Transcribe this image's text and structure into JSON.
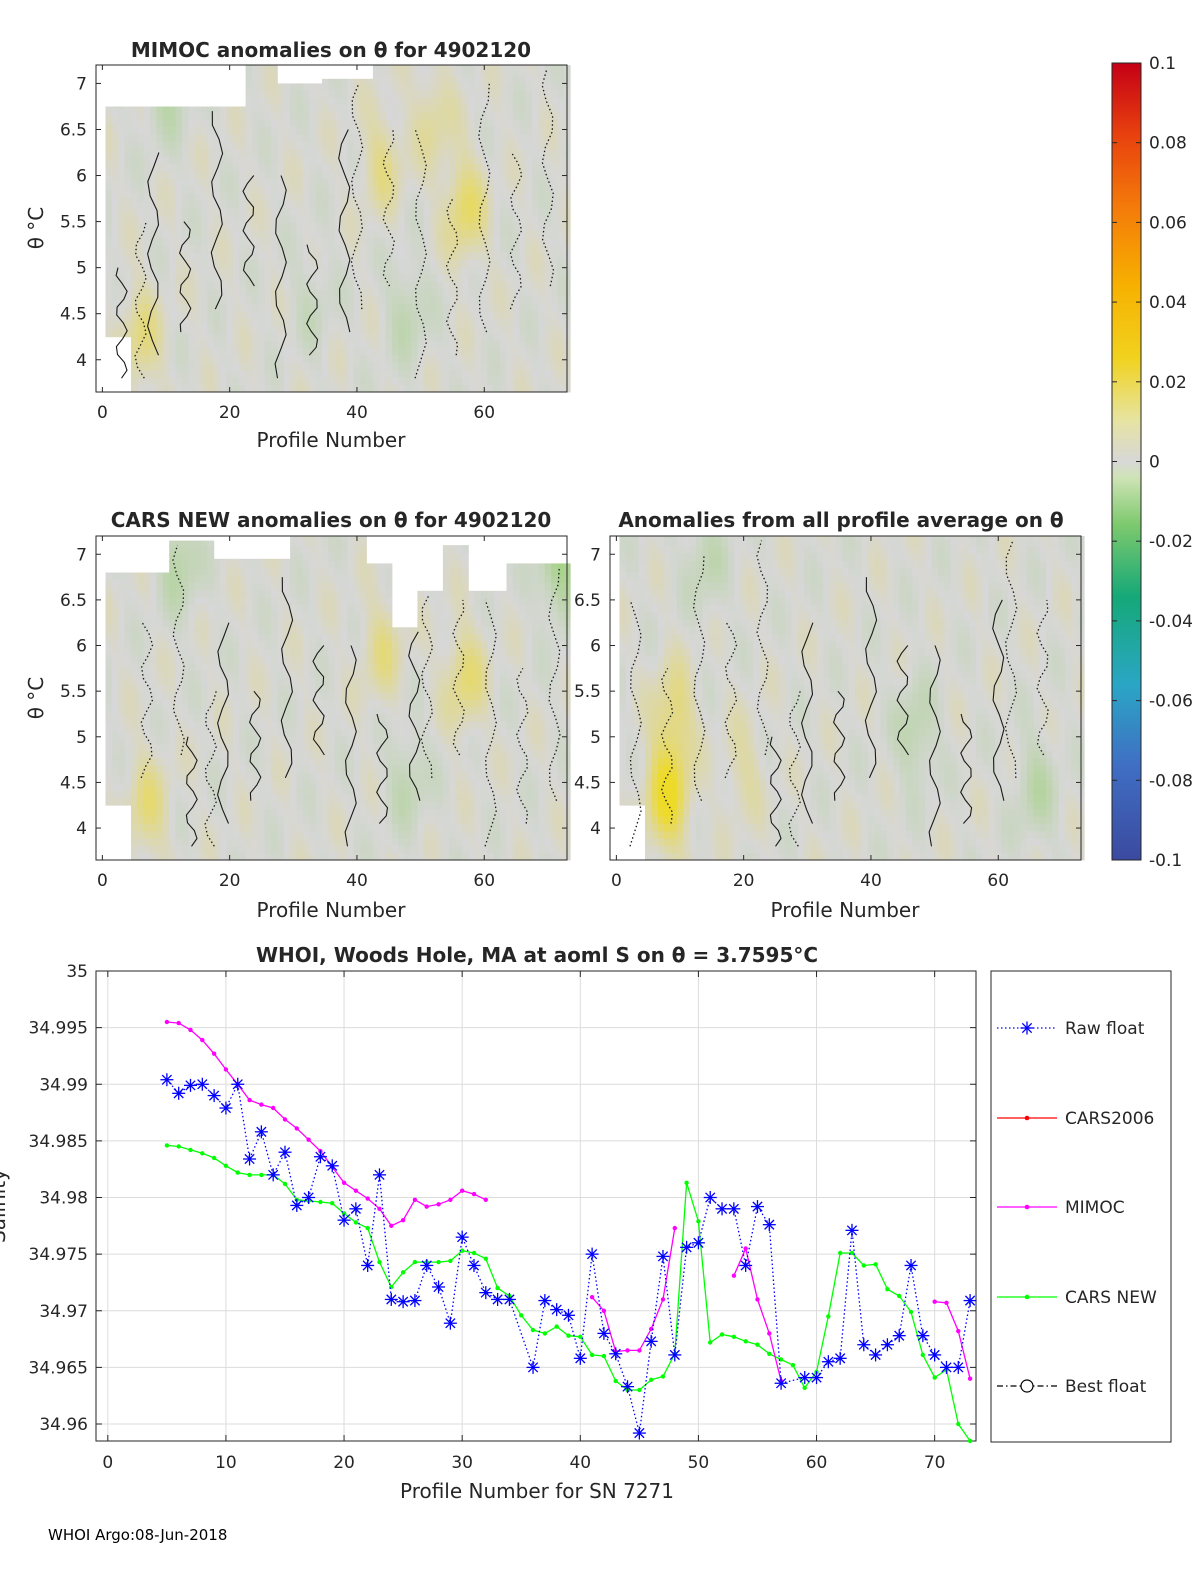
{
  "footer": "WHOI Argo:08-Jun-2018",
  "colorbar": {
    "ticks": [
      "0.1",
      "0.08",
      "0.06",
      "0.04",
      "0.02",
      "0",
      "-0.02",
      "-0.04",
      "-0.06",
      "-0.08",
      "-0.1"
    ]
  },
  "chart_data": [
    {
      "type": "heatmap",
      "title": "MIMOC anomalies on θ  for 4902120",
      "xlabel": "Profile Number",
      "ylabel": "θ °C",
      "xlim": [
        -1,
        73
      ],
      "ylim": [
        3.65,
        7.2
      ],
      "xticks": [
        "0",
        "20",
        "40",
        "60"
      ],
      "yticks": [
        "7",
        "6.5",
        "6",
        "5.5",
        "5",
        "4.5",
        "4"
      ],
      "hotspots": [
        [
          57,
          5.6,
          0.018
        ],
        [
          44,
          6.1,
          0.012
        ],
        [
          6,
          4.2,
          0.014
        ],
        [
          52,
          6.6,
          0.01
        ]
      ],
      "coldspots": [
        [
          10,
          6.9,
          -0.012
        ],
        [
          48,
          4.5,
          -0.01
        ],
        [
          33,
          4.6,
          -0.006
        ]
      ]
    },
    {
      "type": "heatmap",
      "title": "CARS NEW anomalies on θ for 4902120",
      "xlabel": "Profile Number",
      "ylabel": "θ °C",
      "xlim": [
        -1,
        73
      ],
      "ylim": [
        3.65,
        7.2
      ],
      "xticks": [
        "0",
        "20",
        "40",
        "60"
      ],
      "yticks": [
        "7",
        "6.5",
        "6",
        "5.5",
        "5",
        "4.5",
        "4"
      ],
      "hotspots": [
        [
          57,
          5.6,
          0.016
        ],
        [
          44,
          5.9,
          0.012
        ],
        [
          7,
          4.2,
          0.014
        ]
      ],
      "coldspots": [
        [
          12,
          6.9,
          -0.014
        ],
        [
          72,
          6.8,
          -0.02
        ],
        [
          48,
          4.5,
          -0.01
        ]
      ]
    },
    {
      "type": "heatmap",
      "title": "Anomalies from all profile average on θ",
      "xlabel": "Profile Number",
      "ylabel": "",
      "xlim": [
        -1,
        73
      ],
      "ylim": [
        3.65,
        7.2
      ],
      "xticks": [
        "0",
        "20",
        "40",
        "60"
      ],
      "yticks": [
        "7",
        "6.5",
        "6",
        "5.5",
        "5",
        "4.5",
        "4"
      ],
      "hotspots": [
        [
          8,
          4.3,
          0.03
        ],
        [
          9,
          5.2,
          0.016
        ],
        [
          20,
          4.6,
          0.008
        ]
      ],
      "coldspots": [
        [
          47,
          5.0,
          -0.012
        ],
        [
          66,
          4.4,
          -0.012
        ],
        [
          14,
          6.9,
          -0.01
        ]
      ]
    },
    {
      "type": "line",
      "title": "WHOI, Woods Hole, MA at aoml S on θ = 3.7595°C",
      "xlabel": "Profile Number for SN 7271",
      "ylabel": "Salinity",
      "xlim": [
        -1,
        73.5
      ],
      "ylim": [
        34.9585,
        35.0
      ],
      "xticks": [
        "0",
        "10",
        "20",
        "30",
        "40",
        "50",
        "60",
        "70"
      ],
      "yticks": [
        "35",
        "34.995",
        "34.99",
        "34.985",
        "34.98",
        "34.975",
        "34.97",
        "34.965",
        "34.96"
      ],
      "series": [
        {
          "name": "Raw float",
          "color": "#0000ff",
          "x": [
            5,
            6,
            7,
            8,
            9,
            10,
            11,
            12,
            13,
            14,
            15,
            16,
            17,
            18,
            19,
            20,
            21,
            22,
            23,
            24,
            25,
            26,
            27,
            28,
            29,
            30,
            31,
            32,
            33,
            34,
            36,
            37,
            38,
            39,
            40,
            41,
            42,
            43,
            44,
            45,
            46,
            47,
            48,
            49,
            50,
            51,
            52,
            53,
            54,
            55,
            56,
            57,
            59,
            60,
            61,
            62,
            63,
            64,
            65,
            66,
            67,
            68,
            69,
            70,
            71,
            72,
            73
          ],
          "y": [
            34.9904,
            34.9892,
            34.9899,
            34.99,
            34.989,
            34.9879,
            34.99,
            34.9834,
            34.9858,
            34.982,
            34.984,
            34.9793,
            34.98,
            34.9836,
            34.9828,
            34.978,
            34.979,
            34.974,
            34.982,
            34.971,
            34.9708,
            34.9709,
            34.974,
            34.9721,
            34.9689,
            34.9765,
            34.974,
            34.9716,
            34.971,
            34.971,
            34.965,
            34.9709,
            34.9701,
            34.9696,
            34.9658,
            34.975,
            34.968,
            34.9662,
            34.9633,
            34.9592,
            34.9673,
            34.9748,
            34.9661,
            34.9756,
            34.976,
            34.98,
            34.979,
            34.979,
            34.974,
            34.9792,
            34.9776,
            34.9636,
            34.9641,
            34.9641,
            34.9655,
            34.9658,
            34.9771,
            34.967,
            34.9661,
            34.967,
            34.9678,
            34.974,
            34.9678,
            34.9661,
            34.965,
            34.965,
            34.9709
          ]
        },
        {
          "name": "CARS2006",
          "color": "#ff0000",
          "x": [],
          "y": []
        },
        {
          "name": "MIMOC",
          "color": "#ff00ff",
          "segments": [
            {
              "x": [
                5,
                6,
                7,
                8,
                9,
                10,
                11,
                12,
                13,
                14,
                15,
                16,
                17,
                18,
                19,
                20,
                21,
                22,
                23,
                24,
                25,
                26,
                27,
                28,
                29,
                30,
                31,
                32
              ],
              "y": [
                34.9955,
                34.9954,
                34.9948,
                34.9939,
                34.9927,
                34.9913,
                34.99,
                34.9886,
                34.9882,
                34.9879,
                34.9869,
                34.9861,
                34.9851,
                34.9841,
                34.9827,
                34.9813,
                34.9806,
                34.9799,
                34.979,
                34.9775,
                34.978,
                34.9798,
                34.9792,
                34.9794,
                34.9798,
                34.9806,
                34.9803,
                34.9798
              ]
            },
            {
              "x": [
                41,
                42,
                43,
                44,
                45,
                46,
                47,
                48
              ],
              "y": [
                34.9712,
                34.97,
                34.9664,
                34.9665,
                34.9665,
                34.9684,
                34.971,
                34.9773
              ]
            },
            {
              "x": [
                53,
                54,
                55,
                56,
                57
              ],
              "y": [
                34.9731,
                34.9755,
                34.971,
                34.968,
                34.9638
              ]
            },
            {
              "x": [
                70,
                71,
                72,
                73
              ],
              "y": [
                34.9708,
                34.9707,
                34.9682,
                34.964
              ]
            }
          ]
        },
        {
          "name": "CARS NEW",
          "color": "#00ff00",
          "x": [
            5,
            6,
            7,
            8,
            9,
            10,
            11,
            12,
            13,
            14,
            15,
            16,
            17,
            18,
            19,
            20,
            21,
            22,
            23,
            24,
            25,
            26,
            27,
            28,
            29,
            30,
            31,
            32,
            33,
            34,
            35,
            36,
            37,
            38,
            39,
            40,
            41,
            42,
            43,
            44,
            45,
            46,
            47,
            48,
            49,
            50,
            51,
            52,
            53,
            54,
            55,
            56,
            57,
            58,
            59,
            60,
            61,
            62,
            63,
            64,
            65,
            66,
            67,
            68,
            69,
            70,
            71,
            72,
            73
          ],
          "y": [
            34.9846,
            34.9845,
            34.9842,
            34.9839,
            34.9835,
            34.9828,
            34.9822,
            34.982,
            34.982,
            34.982,
            34.9812,
            34.9798,
            34.9797,
            34.9796,
            34.9795,
            34.9786,
            34.9778,
            34.9773,
            34.9743,
            34.9721,
            34.9734,
            34.9743,
            34.9743,
            34.9743,
            34.9744,
            34.9753,
            34.9751,
            34.9746,
            34.972,
            34.9713,
            34.9696,
            34.9683,
            34.968,
            34.9686,
            34.9678,
            34.9677,
            34.9661,
            34.966,
            34.9638,
            34.963,
            34.963,
            34.9639,
            34.9642,
            34.9662,
            34.9813,
            34.9779,
            34.9672,
            34.9679,
            34.9677,
            34.9673,
            34.967,
            34.9662,
            34.9657,
            34.9652,
            34.9632,
            34.9646,
            34.9695,
            34.9751,
            34.9751,
            34.974,
            34.9741,
            34.9719,
            34.9713,
            34.9699,
            34.9661,
            34.9641,
            34.9648,
            34.96,
            34.9585
          ]
        },
        {
          "name": "Best float",
          "color": "#000000",
          "x": [],
          "y": []
        }
      ]
    }
  ]
}
